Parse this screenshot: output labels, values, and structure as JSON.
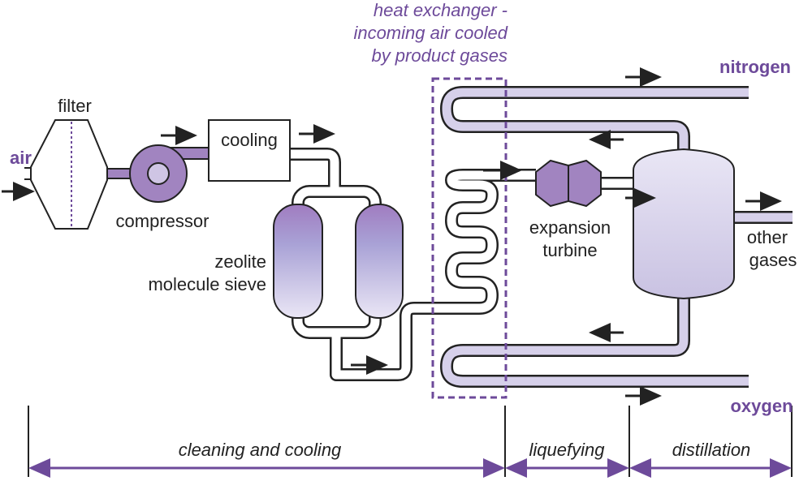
{
  "labels": {
    "heat_exchanger": [
      "heat exchanger -",
      "incoming air cooled",
      "by product gases"
    ],
    "nitrogen": "nitrogen",
    "air": "air",
    "filter": "filter",
    "cooling": "cooling",
    "compressor": "compressor",
    "sieve": [
      "zeolite",
      "molecule sieve"
    ],
    "turbine": [
      "expansion",
      "turbine"
    ],
    "other_gases": [
      "other",
      "gases"
    ],
    "oxygen": "oxygen"
  },
  "stages": [
    "cleaning and cooling",
    "liquefying",
    "distillation"
  ]
}
